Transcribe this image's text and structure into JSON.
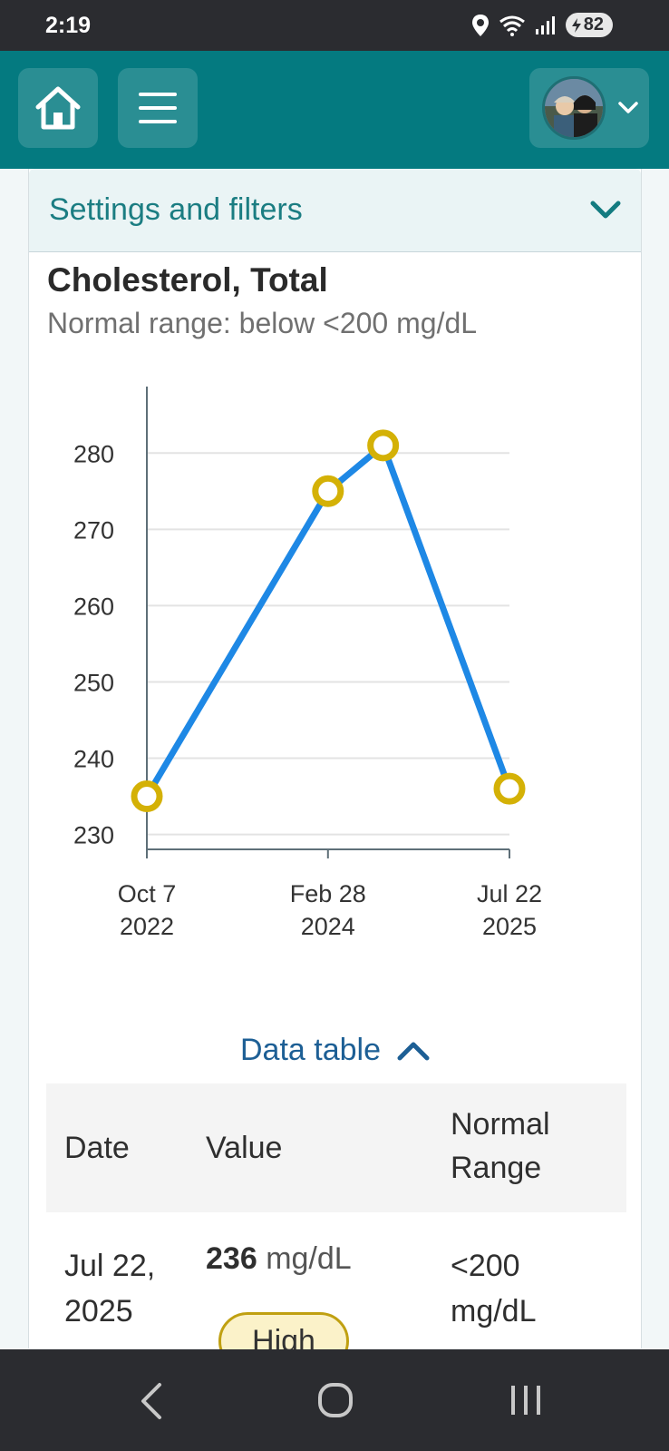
{
  "status_bar": {
    "time": "2:19",
    "battery": "82",
    "icons": [
      "location-icon",
      "wifi-icon",
      "signal-icon",
      "battery-icon"
    ]
  },
  "header": {
    "home_icon": "home-icon",
    "menu_icon": "hamburger-menu-icon",
    "profile_icon": "chevron-down-icon"
  },
  "settings": {
    "label": "Settings and filters"
  },
  "chart_data": {
    "type": "line",
    "title": "Cholesterol, Total",
    "subtitle": "Normal range: below <200 mg/dL",
    "x": [
      "2022-10-07",
      "2024-02-28",
      "2024-08-01",
      "2025-07-22"
    ],
    "values": [
      235,
      275,
      281,
      236
    ],
    "x_ticks": [
      {
        "line1": "Oct 7",
        "line2": "2022"
      },
      {
        "line1": "Feb 28",
        "line2": "2024"
      },
      {
        "line1": "Jul 22",
        "line2": "2025"
      }
    ],
    "y_ticks": [
      230,
      240,
      250,
      260,
      270,
      280
    ],
    "ylim": [
      229,
      288
    ],
    "grid": true,
    "line_color": "#1e88e5",
    "marker_color": "#d4b106"
  },
  "data_table": {
    "toggle_label": "Data table",
    "headers": {
      "date": "Date",
      "value": "Value",
      "range_line1": "Normal",
      "range_line2": "Range"
    },
    "rows": [
      {
        "date_line1": "Jul 22,",
        "date_line2": "2025",
        "value": "236",
        "unit": "mg/dL",
        "flag": "High",
        "range_line1": "<200",
        "range_line2": "mg/dL"
      }
    ]
  },
  "nav_bar": {
    "icons": [
      "back-icon",
      "home-circle-icon",
      "recents-icon"
    ]
  }
}
